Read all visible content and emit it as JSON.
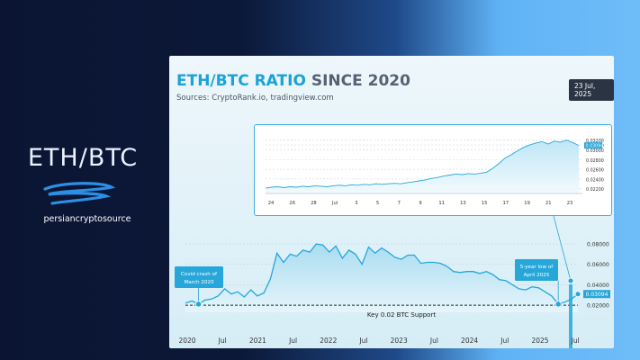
{
  "brand": {
    "title": "ETH/BTC",
    "handle": "persiancryptosource"
  },
  "header": {
    "title_accent": "ETH/BTC RATIO",
    "title_rest": " SINCE 2020",
    "sources": "Sources: CryptoRank.io, tradingview.com",
    "date": "23 Jul, 2025"
  },
  "colors": {
    "accent": "#1aa3d8",
    "line": "#27a7d9",
    "badge_bg": "#2b3442"
  },
  "chart_data": [
    {
      "type": "line",
      "title": "",
      "x_tick_labels": [
        "24",
        "26",
        "28",
        "Jul",
        "3",
        "5",
        "7",
        "9",
        "11",
        "13",
        "15",
        "17",
        "19",
        "21",
        "23"
      ],
      "y_tick_labels": [
        "0.03200",
        "0.03100",
        "0.03000",
        "0.02800",
        "0.02600",
        "0.02400",
        "0.02200"
      ],
      "ylim": [
        0.021,
        0.0325
      ],
      "current_value_label": "0.03094",
      "series": [
        {
          "values": [
            0.0221,
            0.0223,
            0.0224,
            0.0222,
            0.0224,
            0.0223,
            0.0225,
            0.0224,
            0.0226,
            0.0225,
            0.0224,
            0.0226,
            0.0227,
            0.0226,
            0.0228,
            0.0227,
            0.0229,
            0.0228,
            0.023,
            0.0229,
            0.023,
            0.0231,
            0.023,
            0.0232,
            0.0234,
            0.0236,
            0.0238,
            0.0241,
            0.0243,
            0.0246,
            0.0248,
            0.025,
            0.0249,
            0.0251,
            0.025,
            0.0252,
            0.0254,
            0.0262,
            0.0272,
            0.0283,
            0.029,
            0.0298,
            0.0305,
            0.031,
            0.0314,
            0.0317,
            0.0312,
            0.0318,
            0.0316,
            0.032,
            0.0315,
            0.0309
          ]
        }
      ]
    },
    {
      "type": "area",
      "title": "",
      "x_tick_labels": [
        "2020",
        "Jul",
        "2021",
        "Jul",
        "2022",
        "Jul",
        "2023",
        "Jul",
        "2024",
        "Jul",
        "2025",
        "Jul"
      ],
      "y_tick_labels": [
        "0.08000",
        "0.06000",
        "0.04000",
        "0.02000"
      ],
      "ylim": [
        0.013,
        0.088
      ],
      "current_value_label": "0.03094",
      "series": [
        {
          "values": [
            0.022,
            0.024,
            0.021,
            0.025,
            0.026,
            0.029,
            0.036,
            0.031,
            0.033,
            0.028,
            0.035,
            0.029,
            0.032,
            0.046,
            0.071,
            0.062,
            0.07,
            0.068,
            0.074,
            0.072,
            0.08,
            0.079,
            0.072,
            0.078,
            0.066,
            0.074,
            0.07,
            0.06,
            0.077,
            0.071,
            0.076,
            0.072,
            0.067,
            0.065,
            0.069,
            0.069,
            0.061,
            0.062,
            0.062,
            0.061,
            0.058,
            0.053,
            0.052,
            0.053,
            0.053,
            0.051,
            0.053,
            0.05,
            0.045,
            0.044,
            0.04,
            0.036,
            0.035,
            0.038,
            0.037,
            0.033,
            0.029,
            0.021,
            0.023,
            0.026,
            0.0309
          ]
        }
      ],
      "support_level": 0.02,
      "annotations": [
        {
          "text_line1": "Covid crash of",
          "text_line2": "March 2020"
        },
        {
          "text_line1": "5-year low of",
          "text_line2": "April 2025"
        },
        {
          "text_line1": "Key 0.02 BTC Support"
        }
      ]
    }
  ]
}
